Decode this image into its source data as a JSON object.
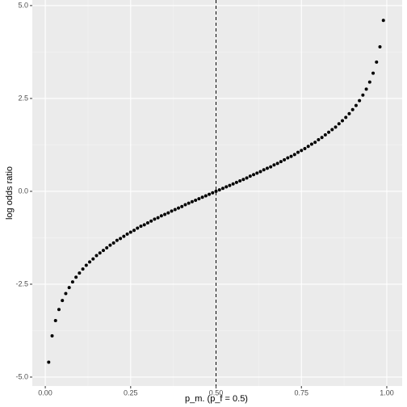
{
  "chart_data": {
    "type": "scatter",
    "x_label": "p_m. (p_f = 0.5)",
    "y_label": "log odds ratio",
    "x": [
      0.01,
      0.02,
      0.03,
      0.04,
      0.05,
      0.06,
      0.07,
      0.08,
      0.09,
      0.1,
      0.11,
      0.12,
      0.13,
      0.14,
      0.15,
      0.16,
      0.17,
      0.18,
      0.19,
      0.2,
      0.21,
      0.22,
      0.23,
      0.24,
      0.25,
      0.26,
      0.27,
      0.28,
      0.29,
      0.3,
      0.31,
      0.32,
      0.33,
      0.34,
      0.35,
      0.36,
      0.37,
      0.38,
      0.39,
      0.4,
      0.41,
      0.42,
      0.43,
      0.44,
      0.45,
      0.46,
      0.47,
      0.48,
      0.49,
      0.5,
      0.51,
      0.52,
      0.53,
      0.54,
      0.55,
      0.56,
      0.57,
      0.58,
      0.59,
      0.6,
      0.61,
      0.62,
      0.63,
      0.64,
      0.65,
      0.66,
      0.67,
      0.68,
      0.69,
      0.7,
      0.71,
      0.72,
      0.73,
      0.74,
      0.75,
      0.76,
      0.77,
      0.78,
      0.79,
      0.8,
      0.81,
      0.82,
      0.83,
      0.84,
      0.85,
      0.86,
      0.87,
      0.88,
      0.89,
      0.9,
      0.91,
      0.92,
      0.93,
      0.94,
      0.95,
      0.96,
      0.97,
      0.98,
      0.99
    ],
    "values": [
      -4.6,
      -3.89,
      -3.48,
      -3.18,
      -2.94,
      -2.75,
      -2.59,
      -2.44,
      -2.31,
      -2.2,
      -2.09,
      -1.99,
      -1.9,
      -1.82,
      -1.73,
      -1.66,
      -1.59,
      -1.52,
      -1.45,
      -1.39,
      -1.32,
      -1.27,
      -1.21,
      -1.15,
      -1.1,
      -1.05,
      -0.99,
      -0.94,
      -0.9,
      -0.85,
      -0.8,
      -0.75,
      -0.71,
      -0.66,
      -0.62,
      -0.58,
      -0.53,
      -0.49,
      -0.45,
      -0.41,
      -0.36,
      -0.32,
      -0.28,
      -0.24,
      -0.2,
      -0.16,
      -0.12,
      -0.08,
      -0.04,
      0,
      0.04,
      0.08,
      0.12,
      0.16,
      0.2,
      0.24,
      0.28,
      0.32,
      0.36,
      0.41,
      0.45,
      0.49,
      0.53,
      0.58,
      0.62,
      0.66,
      0.71,
      0.75,
      0.8,
      0.85,
      0.9,
      0.94,
      0.99,
      1.05,
      1.1,
      1.15,
      1.21,
      1.27,
      1.32,
      1.39,
      1.45,
      1.52,
      1.59,
      1.66,
      1.73,
      1.82,
      1.9,
      1.99,
      2.09,
      2.2,
      2.31,
      2.44,
      2.59,
      2.75,
      2.94,
      3.18,
      3.48,
      3.89,
      4.6
    ],
    "color": "#000000",
    "vline": 0.5,
    "xlim": [
      -0.038,
      1.045
    ],
    "ylim": [
      -5.24,
      5.15
    ],
    "xticks": [
      {
        "value": 0,
        "label": "0.00"
      },
      {
        "value": 0.25,
        "label": "0.25"
      },
      {
        "value": 0.5,
        "label": "0.50"
      },
      {
        "value": 0.75,
        "label": "0.75"
      },
      {
        "value": 1,
        "label": "1.00"
      }
    ],
    "yticks": [
      {
        "value": -5,
        "label": "-5.0"
      },
      {
        "value": -2.5,
        "label": "-2.5"
      },
      {
        "value": 0,
        "label": "0.0"
      },
      {
        "value": 2.5,
        "label": "2.5"
      },
      {
        "value": 5,
        "label": "5.0"
      }
    ],
    "grid": true
  }
}
